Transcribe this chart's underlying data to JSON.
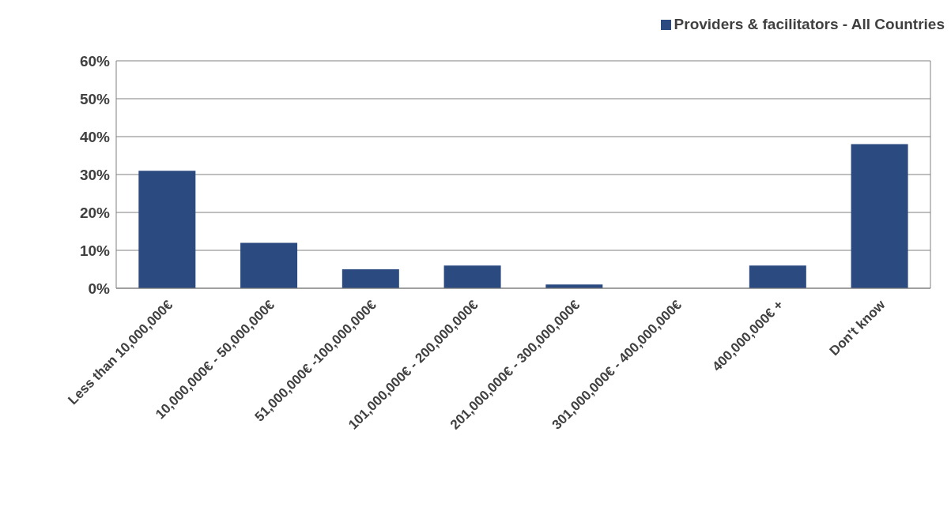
{
  "chart_data": {
    "type": "bar",
    "categories": [
      "Less than 10,000,000€",
      "10,000,000€ - 50,000,000€",
      "51,000,000€ -100,000,000€",
      "101,000,000€ - 200,000,000€",
      "201,000,000€ - 300,000,000€",
      "301,000,000€ - 400,000,000€",
      "400,000,000€ +",
      "Don't know"
    ],
    "series": [
      {
        "name": "Providers & facilitators - All Countries",
        "color": "#2a4a80",
        "values": [
          31,
          12,
          5,
          6,
          1,
          0,
          6,
          38
        ]
      }
    ],
    "ylim": [
      0,
      60
    ],
    "yticks": [
      {
        "value": 0,
        "label": "0%"
      },
      {
        "value": 10,
        "label": "10%"
      },
      {
        "value": 20,
        "label": "20%"
      },
      {
        "value": 30,
        "label": "30%"
      },
      {
        "value": 40,
        "label": "40%"
      },
      {
        "value": 50,
        "label": "50%"
      },
      {
        "value": 60,
        "label": "60%"
      }
    ],
    "grid": "y",
    "legend": "top right"
  }
}
